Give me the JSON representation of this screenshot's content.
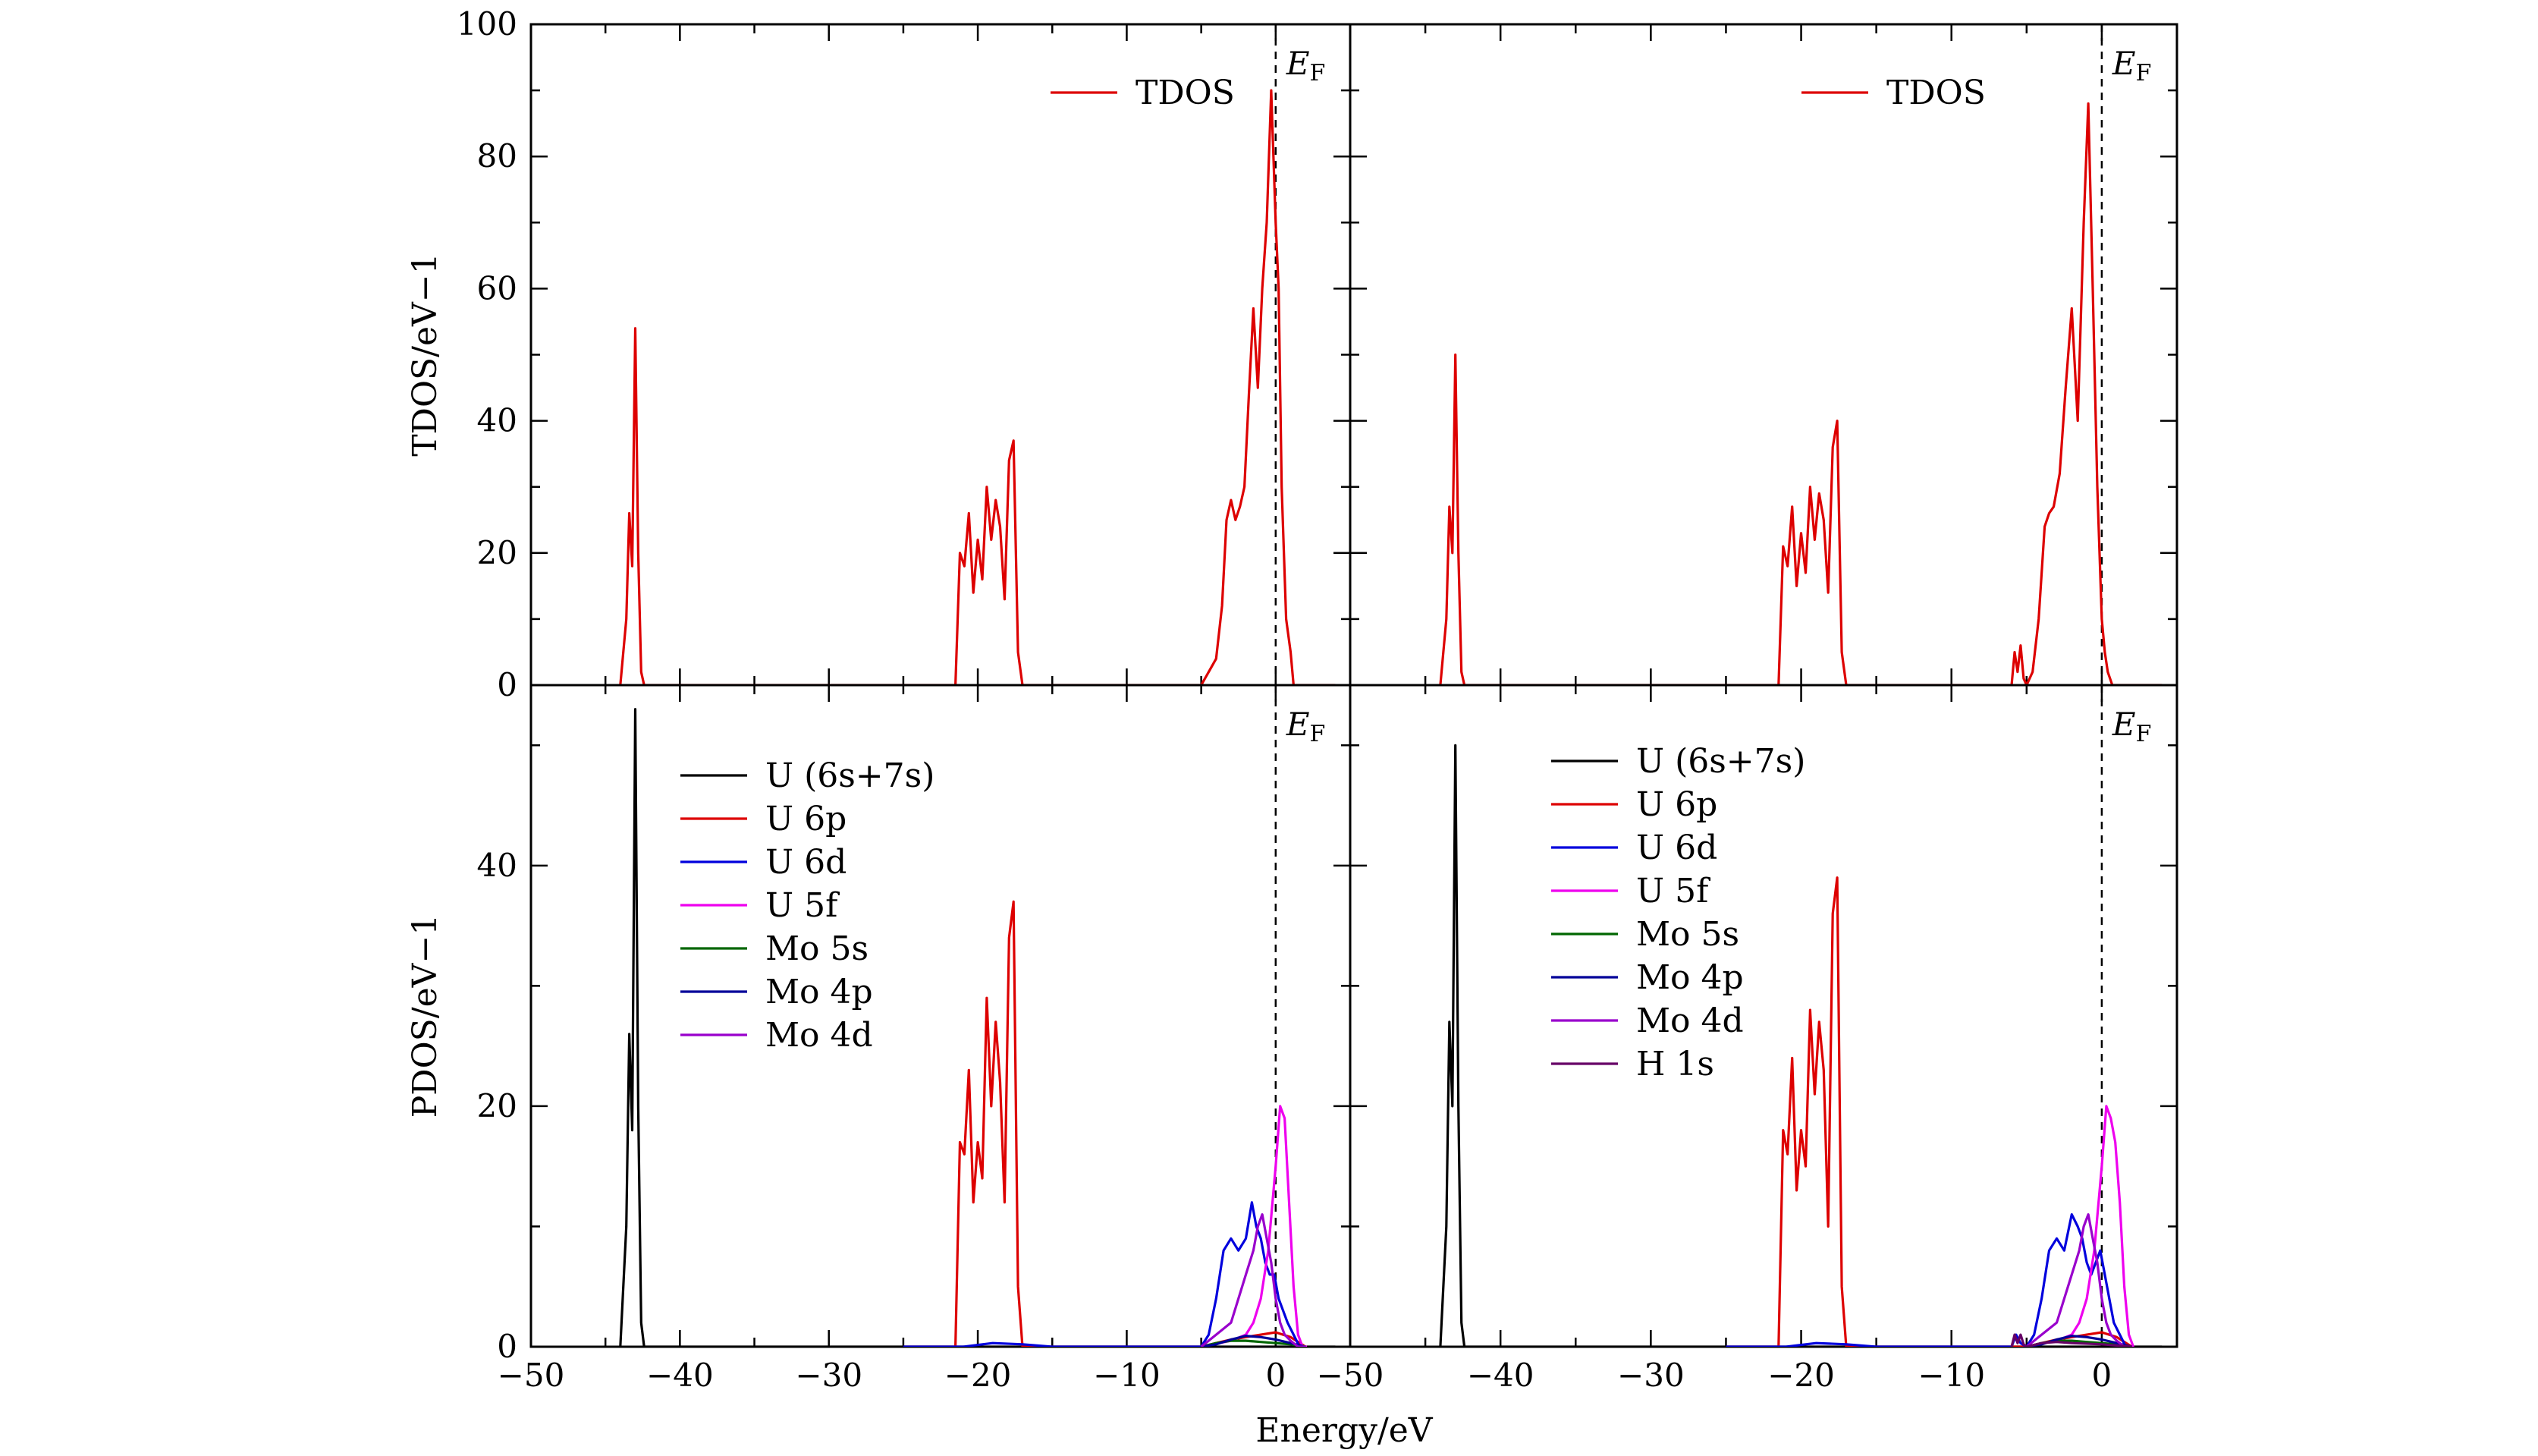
{
  "figure": {
    "x_axis_label": "Energy/eV",
    "fermi_label": "E",
    "fermi_subscript": "F"
  },
  "colors": {
    "U (6s+7s)": "#000000",
    "U 6p": "#dd0000",
    "U 6d": "#0000dd",
    "U 5f": "#ee00ee",
    "Mo 5s": "#006600",
    "Mo 4p": "#000099",
    "Mo 4d": "#9900cc",
    "H 1s": "#660066",
    "TDOS": "#dd0000"
  },
  "chart_data": [
    {
      "id": "tdos_left",
      "type": "line",
      "ylabel": "TDOS/eV−1",
      "xlim": [
        -50,
        5
      ],
      "ylim": [
        0,
        100
      ],
      "yticks": [
        "0",
        "20",
        "40",
        "60",
        "80",
        "100"
      ],
      "fermi_level": 0,
      "series": [
        {
          "name": "TDOS",
          "x": [
            -44,
            -43.6,
            -43.4,
            -43.2,
            -43,
            -42.8,
            -42.6,
            -42.4,
            -42,
            -25,
            -21.5,
            -21.2,
            -20.9,
            -20.6,
            -20.3,
            -20,
            -19.7,
            -19.4,
            -19.1,
            -18.8,
            -18.5,
            -18.2,
            -17.9,
            -17.6,
            -17.3,
            -17,
            -16.8,
            -16.5,
            -16.2,
            -5,
            -4.5,
            -4,
            -3.6,
            -3.3,
            -3,
            -2.7,
            -2.4,
            -2.1,
            -1.8,
            -1.5,
            -1.2,
            -0.9,
            -0.6,
            -0.3,
            0,
            0.2,
            0.4,
            0.7,
            1,
            1.2,
            1.5,
            2,
            4
          ],
          "y": [
            0,
            10,
            26,
            18,
            54,
            20,
            2,
            0,
            0,
            0,
            0,
            20,
            18,
            26,
            14,
            22,
            16,
            30,
            22,
            28,
            24,
            13,
            34,
            37,
            5,
            0,
            0,
            0,
            0,
            0,
            2,
            4,
            12,
            25,
            28,
            25,
            27,
            30,
            44,
            57,
            45,
            60,
            70,
            90,
            70,
            60,
            30,
            10,
            5,
            0,
            0,
            0,
            0
          ]
        }
      ]
    },
    {
      "id": "tdos_right",
      "type": "line",
      "xlim": [
        -50,
        5
      ],
      "ylim": [
        0,
        100
      ],
      "fermi_level": 0,
      "series": [
        {
          "name": "TDOS",
          "x": [
            -44,
            -43.6,
            -43.4,
            -43.2,
            -43,
            -42.8,
            -42.6,
            -42.4,
            -42,
            -25,
            -21.5,
            -21.2,
            -20.9,
            -20.6,
            -20.3,
            -20,
            -19.7,
            -19.4,
            -19.1,
            -18.8,
            -18.5,
            -18.2,
            -17.9,
            -17.6,
            -17.3,
            -17,
            -16.8,
            -16.5,
            -16.2,
            -6,
            -5.8,
            -5.6,
            -5.4,
            -5.2,
            -5,
            -4.6,
            -4.2,
            -3.8,
            -3.5,
            -3.2,
            -2.8,
            -2.4,
            -2,
            -1.6,
            -1.2,
            -0.9,
            -0.6,
            -0.3,
            0,
            0.2,
            0.4,
            0.7,
            1,
            1.2,
            1.5,
            2,
            4
          ],
          "y": [
            0,
            10,
            27,
            20,
            50,
            20,
            2,
            0,
            0,
            0,
            0,
            21,
            18,
            27,
            15,
            23,
            17,
            30,
            22,
            29,
            25,
            14,
            36,
            40,
            5,
            0,
            0,
            0,
            0,
            0,
            5,
            2,
            6,
            1,
            0,
            2,
            10,
            24,
            26,
            27,
            32,
            45,
            57,
            40,
            70,
            88,
            60,
            30,
            10,
            5,
            2,
            0,
            0,
            0,
            0,
            0,
            0
          ]
        }
      ]
    },
    {
      "id": "pdos_left",
      "type": "line",
      "ylabel": "PDOS/eV−1",
      "xlabel": "Energy/eV",
      "xlim": [
        -50,
        5
      ],
      "ylim": [
        0,
        55
      ],
      "yticks": [
        "0",
        "20",
        "40"
      ],
      "xticks": [
        "−50",
        "−40",
        "−30",
        "−20",
        "−10",
        "0"
      ],
      "fermi_level": 0,
      "series": [
        {
          "name": "U (6s+7s)",
          "x": [
            -44,
            -43.6,
            -43.4,
            -43.2,
            -43,
            -42.8,
            -42.6,
            -42.4,
            -42,
            4
          ],
          "y": [
            0,
            10,
            26,
            18,
            53,
            20,
            2,
            0,
            0,
            0
          ]
        },
        {
          "name": "U 6p",
          "x": [
            -25,
            -21.5,
            -21.2,
            -20.9,
            -20.6,
            -20.3,
            -20,
            -19.7,
            -19.4,
            -19.1,
            -18.8,
            -18.5,
            -18.2,
            -17.9,
            -17.6,
            -17.3,
            -17,
            -16.8,
            -16.5,
            -16.2,
            -5,
            -4,
            -3,
            -2,
            -1,
            0,
            1,
            2
          ],
          "y": [
            0,
            0,
            17,
            16,
            23,
            12,
            17,
            14,
            29,
            20,
            27,
            22,
            12,
            34,
            37,
            5,
            0,
            0,
            0,
            0,
            0,
            0.3,
            0.6,
            0.8,
            1,
            1.2,
            0.8,
            0
          ]
        },
        {
          "name": "U 6d",
          "x": [
            -25,
            -21,
            -19,
            -17,
            -15,
            -5,
            -4.5,
            -4,
            -3.5,
            -3,
            -2.5,
            -2,
            -1.6,
            -1.3,
            -1,
            -0.7,
            -0.4,
            -0.1,
            0.2,
            0.5,
            0.8,
            1.2,
            1.6,
            2
          ],
          "y": [
            0,
            0,
            0.3,
            0.2,
            0,
            0,
            1,
            4,
            8,
            9,
            8,
            9,
            12,
            10,
            9,
            7,
            6,
            6,
            4,
            3,
            2,
            1,
            0,
            0
          ]
        },
        {
          "name": "U 5f",
          "x": [
            -5,
            -3,
            -2,
            -1.5,
            -1,
            -0.5,
            0,
            0.3,
            0.6,
            0.9,
            1.2,
            1.5,
            1.8,
            2.1
          ],
          "y": [
            0,
            0.5,
            1,
            2,
            4,
            8,
            15,
            20,
            19,
            12,
            5,
            1,
            0,
            0
          ]
        },
        {
          "name": "Mo 5s",
          "x": [
            -5,
            -4,
            -3,
            -2,
            -1,
            0,
            1,
            2
          ],
          "y": [
            0,
            0.3,
            0.5,
            0.5,
            0.4,
            0.3,
            0.2,
            0
          ]
        },
        {
          "name": "Mo 4p",
          "x": [
            -5,
            -4,
            -3,
            -2,
            -1,
            0,
            1,
            2
          ],
          "y": [
            0,
            0.2,
            0.6,
            0.9,
            0.8,
            0.6,
            0.3,
            0
          ]
        },
        {
          "name": "Mo 4d",
          "x": [
            -5,
            -4,
            -3,
            -2.5,
            -2,
            -1.5,
            -1.2,
            -0.9,
            -0.6,
            -0.3,
            0,
            0.3,
            0.6,
            1,
            1.5,
            2
          ],
          "y": [
            0,
            1,
            2,
            4,
            6,
            8,
            10,
            11,
            9,
            7,
            4,
            2,
            1,
            0.5,
            0,
            0
          ]
        }
      ]
    },
    {
      "id": "pdos_right",
      "type": "line",
      "xlim": [
        -50,
        5
      ],
      "ylim": [
        0,
        55
      ],
      "xticks": [
        "−50",
        "−40",
        "−30",
        "−20",
        "−10",
        "0"
      ],
      "fermi_level": 0,
      "series": [
        {
          "name": "U (6s+7s)",
          "x": [
            -44,
            -43.6,
            -43.4,
            -43.2,
            -43,
            -42.8,
            -42.6,
            -42.4,
            -42,
            4
          ],
          "y": [
            0,
            10,
            27,
            20,
            50,
            20,
            2,
            0,
            0,
            0
          ]
        },
        {
          "name": "U 6p",
          "x": [
            -25,
            -21.5,
            -21.2,
            -20.9,
            -20.6,
            -20.3,
            -20,
            -19.7,
            -19.4,
            -19.1,
            -18.8,
            -18.5,
            -18.2,
            -17.9,
            -17.6,
            -17.3,
            -17,
            -16.8,
            -16.5,
            -16.2,
            -5,
            -4,
            -3,
            -2,
            -1,
            0,
            1,
            2
          ],
          "y": [
            0,
            0,
            18,
            16,
            24,
            13,
            18,
            15,
            28,
            21,
            27,
            23,
            10,
            36,
            39,
            5,
            0,
            0,
            0,
            0,
            0,
            0.3,
            0.6,
            0.8,
            1,
            1.2,
            0.8,
            0
          ]
        },
        {
          "name": "U 6d",
          "x": [
            -25,
            -21,
            -19,
            -17,
            -15,
            -6,
            -5.7,
            -5.4,
            -5,
            -4.5,
            -4,
            -3.5,
            -3,
            -2.5,
            -2,
            -1.6,
            -1.3,
            -1,
            -0.7,
            -0.4,
            -0.1,
            0.2,
            0.5,
            0.8,
            1.2,
            1.6,
            2
          ],
          "y": [
            0,
            0,
            0.3,
            0.2,
            0,
            0,
            1,
            0.3,
            0,
            1,
            4,
            8,
            9,
            8,
            11,
            10,
            9,
            7,
            6,
            7,
            8,
            6,
            4,
            2,
            1,
            0,
            0
          ]
        },
        {
          "name": "U 5f",
          "x": [
            -5,
            -3,
            -2,
            -1.5,
            -1,
            -0.5,
            0,
            0.3,
            0.6,
            0.9,
            1.2,
            1.5,
            1.8,
            2.1
          ],
          "y": [
            0,
            0.5,
            1,
            2,
            4,
            8,
            15,
            20,
            19,
            17,
            12,
            5,
            1,
            0
          ]
        },
        {
          "name": "Mo 5s",
          "x": [
            -5,
            -4,
            -3,
            -2,
            -1,
            0,
            1,
            2
          ],
          "y": [
            0,
            0.3,
            0.5,
            0.5,
            0.4,
            0.3,
            0.2,
            0
          ]
        },
        {
          "name": "Mo 4p",
          "x": [
            -5,
            -4,
            -3,
            -2,
            -1,
            0,
            1,
            2
          ],
          "y": [
            0,
            0.2,
            0.6,
            0.9,
            0.8,
            0.6,
            0.3,
            0
          ]
        },
        {
          "name": "Mo 4d",
          "x": [
            -5,
            -4,
            -3,
            -2.5,
            -2,
            -1.5,
            -1.2,
            -0.9,
            -0.6,
            -0.3,
            0,
            0.3,
            0.6,
            1,
            1.5,
            2
          ],
          "y": [
            0,
            1,
            2,
            4,
            6,
            8,
            10,
            11,
            9,
            7,
            4,
            2,
            1,
            0.5,
            0,
            0
          ]
        },
        {
          "name": "H 1s",
          "x": [
            -6,
            -5.8,
            -5.6,
            -5.4,
            -5.2,
            -5,
            -4,
            -3,
            -2,
            0,
            2
          ],
          "y": [
            0,
            1,
            0.3,
            1,
            0.2,
            0,
            0.3,
            0.4,
            0.3,
            0.2,
            0
          ]
        }
      ]
    }
  ],
  "legends": {
    "tdos_left": [
      "TDOS"
    ],
    "tdos_right": [
      "TDOS"
    ],
    "pdos_left": [
      "U (6s+7s)",
      "U 6p",
      "U 6d",
      "U 5f",
      "Mo 5s",
      "Mo 4p",
      "Mo 4d"
    ],
    "pdos_right": [
      "U (6s+7s)",
      "U 6p",
      "U 6d",
      "U 5f",
      "Mo 5s",
      "Mo 4p",
      "Mo 4d",
      "H 1s"
    ]
  }
}
